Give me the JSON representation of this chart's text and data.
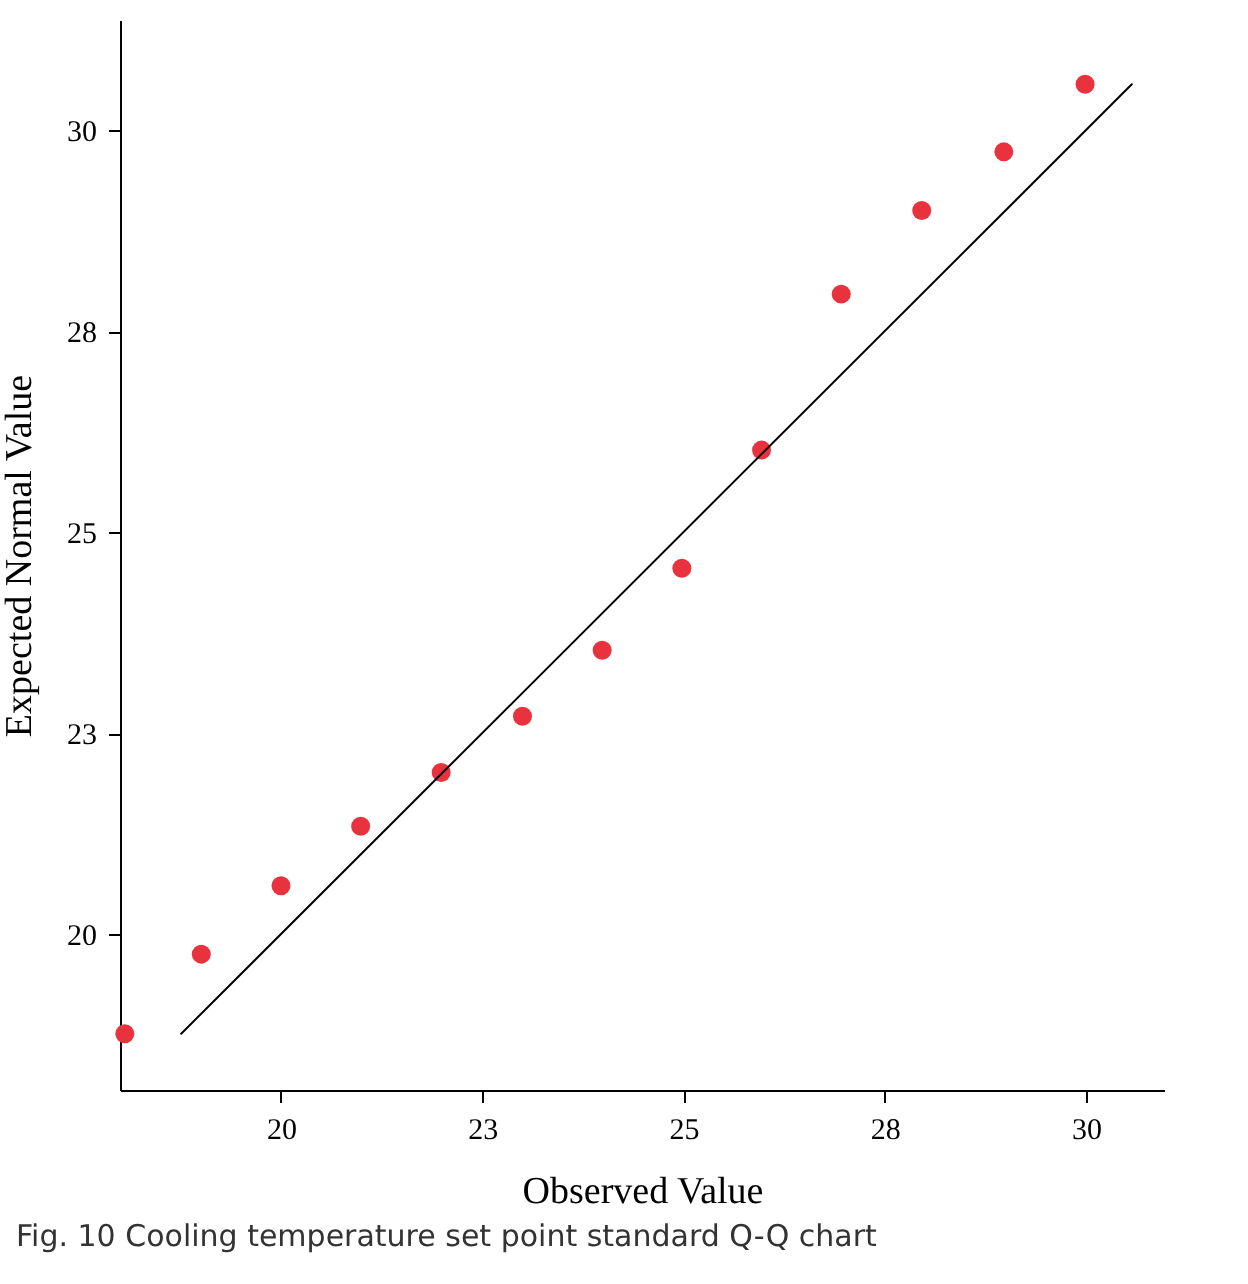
{
  "chart_data": {
    "type": "scatter",
    "xlabel": "Observed Value",
    "ylabel": "Expected Normal Value",
    "annotations": [
      "Fig. 10  Cooling temperature set point standard Q-Q chart"
    ],
    "x": [
      18.06,
      19.01,
      20.0,
      20.99,
      21.99,
      23.0,
      23.99,
      24.98,
      25.97,
      26.96,
      27.96,
      28.98,
      29.99
    ],
    "series": [
      {
        "color": "#e8333f",
        "marker": "circle",
        "values": [
          18.76,
          19.75,
          20.6,
          21.34,
          22.01,
          22.71,
          23.53,
          24.55,
          26.02,
          27.96,
          29.0,
          29.73,
          30.57
        ]
      },
      {
        "type": "line",
        "color": "#000000",
        "line_style": "solid",
        "x": [
          18.76,
          30.57
        ],
        "values": [
          18.76,
          30.57
        ]
      }
    ],
    "xlim": [
      18.0,
      30.97
    ],
    "ylim": [
      18.06,
      31.37
    ],
    "xticks": [
      {
        "value": 20,
        "label": "20"
      },
      {
        "value": 22.5,
        "label": "23"
      },
      {
        "value": 25,
        "label": "25"
      },
      {
        "value": 27.5,
        "label": "28"
      },
      {
        "value": 30,
        "label": "30"
      }
    ],
    "yticks": [
      {
        "value": 20,
        "label": "20"
      },
      {
        "value": 22.5,
        "label": "23"
      },
      {
        "value": 25,
        "label": "25"
      },
      {
        "value": 27.5,
        "label": "28"
      },
      {
        "value": 30,
        "label": "30"
      }
    ],
    "grid": false
  }
}
